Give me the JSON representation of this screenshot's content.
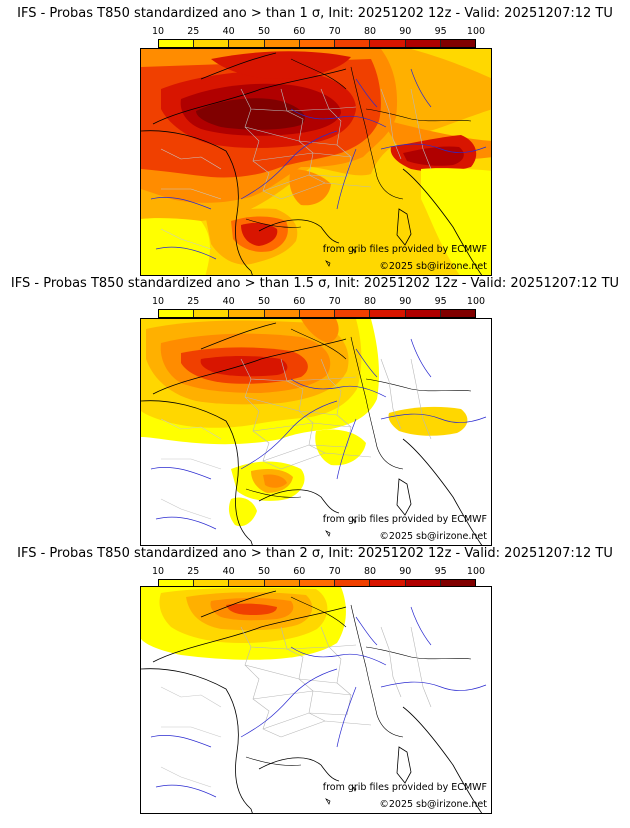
{
  "panels": [
    {
      "title": "IFS - Probas T850  standardized ano > than 1 σ, Init: 20251202 12z - Valid: 20251207:12 TU"
    },
    {
      "title": "IFS - Probas T850  standardized ano > than 1.5 σ, Init: 20251202 12z - Valid: 20251207:12 TU"
    },
    {
      "title": "IFS - Probas T850  standardized ano > than 2 σ, Init: 20251202 12z - Valid: 20251207:12 TU"
    }
  ],
  "legend": {
    "ticks": [
      "10",
      "25",
      "40",
      "50",
      "60",
      "70",
      "80",
      "90",
      "95",
      "100"
    ],
    "colors": [
      "#ffff00",
      "#ffd700",
      "#ffb000",
      "#ff8c00",
      "#ff6a00",
      "#f04000",
      "#d81500",
      "#b00000",
      "#800000"
    ]
  },
  "credits": {
    "source": "from grib files provided by ECMWF",
    "copyright": "©2025 sb@irizone.net"
  }
}
